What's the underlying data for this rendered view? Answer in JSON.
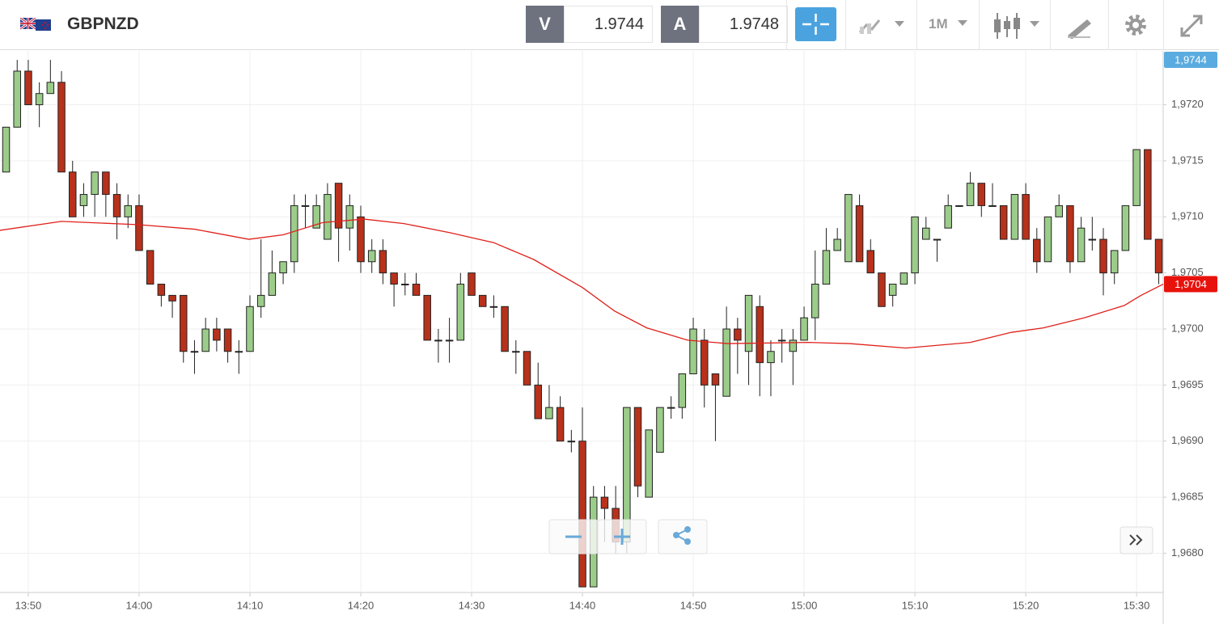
{
  "header": {
    "symbol": "GBPNZD",
    "bid_label": "V",
    "bid": "1.9744",
    "ask_label": "A",
    "ask": "1.9748",
    "interval": "1M"
  },
  "chart_data": {
    "type": "candlestick",
    "x": [
      828,
      829,
      830,
      831,
      832,
      833,
      834,
      835,
      836,
      837,
      838,
      839,
      840,
      841,
      842,
      843,
      844,
      845,
      846,
      847,
      848,
      849,
      850,
      851,
      852,
      853,
      854,
      855,
      856,
      857,
      858,
      859,
      860,
      861,
      862,
      863,
      864,
      865,
      866,
      867,
      868,
      869,
      870,
      871,
      872,
      873,
      874,
      875,
      876,
      877,
      878,
      879,
      880,
      881,
      882,
      883,
      884,
      885,
      886,
      887,
      888,
      889,
      890,
      891,
      892,
      893,
      894,
      895,
      896,
      897,
      898,
      899,
      900,
      901,
      902,
      903,
      904,
      905,
      906,
      907,
      908,
      909,
      910,
      911,
      912,
      913,
      914,
      915,
      916,
      917,
      918,
      919,
      920,
      921,
      922,
      923,
      924,
      925,
      926,
      927,
      928,
      929,
      930,
      931,
      932
    ],
    "open": [
      1.9714,
      1.9718,
      1.9723,
      1.972,
      1.9721,
      1.9722,
      1.9714,
      1.9711,
      1.9712,
      1.9714,
      1.9712,
      1.971,
      1.9711,
      1.9707,
      1.9704,
      1.9703,
      1.9703,
      1.9698,
      1.9698,
      1.97,
      1.97,
      1.9698,
      1.9698,
      1.9702,
      1.9703,
      1.9705,
      1.9706,
      1.9711,
      1.9709,
      1.9708,
      1.9713,
      1.9709,
      1.971,
      1.9706,
      1.9707,
      1.9705,
      1.9704,
      1.9704,
      1.9703,
      1.9699,
      1.9699,
      1.9699,
      1.9705,
      1.9703,
      1.9702,
      1.9702,
      1.9698,
      1.9698,
      1.9695,
      1.9692,
      1.9693,
      1.969,
      1.969,
      1.9677,
      1.9685,
      1.9684,
      1.9681,
      1.9693,
      1.9685,
      1.9689,
      1.9693,
      1.9693,
      1.9696,
      1.9699,
      1.9696,
      1.9694,
      1.97,
      1.9698,
      1.9702,
      1.9697,
      1.9699,
      1.9698,
      1.9699,
      1.9701,
      1.9704,
      1.9707,
      1.9706,
      1.9711,
      1.9707,
      1.9705,
      1.9703,
      1.9704,
      1.9705,
      1.9708,
      1.9708,
      1.9709,
      1.9711,
      1.9711,
      1.9713,
      1.9711,
      1.9711,
      1.9708,
      1.9712,
      1.9708,
      1.9706,
      1.971,
      1.9711,
      1.9706,
      1.9708,
      1.9708,
      1.9705,
      1.9707,
      1.9711,
      1.9716,
      1.9708
    ],
    "high": [
      1.9718,
      1.9724,
      1.9724,
      1.9722,
      1.9724,
      1.9723,
      1.9715,
      1.9713,
      1.9714,
      1.9714,
      1.9713,
      1.9712,
      1.9712,
      1.9707,
      1.9704,
      1.9703,
      1.9703,
      1.9699,
      1.9701,
      1.9701,
      1.97,
      1.9699,
      1.9703,
      1.9708,
      1.9707,
      1.9706,
      1.9712,
      1.9712,
      1.9712,
      1.9713,
      1.9713,
      1.9712,
      1.9711,
      1.9708,
      1.9708,
      1.9705,
      1.9705,
      1.9705,
      1.9703,
      1.97,
      1.9701,
      1.9705,
      1.9705,
      1.9703,
      1.9703,
      1.9702,
      1.9699,
      1.9698,
      1.9697,
      1.9695,
      1.9694,
      1.9691,
      1.9693,
      1.9686,
      1.9686,
      1.9686,
      1.9693,
      1.9693,
      1.9691,
      1.9693,
      1.9694,
      1.9696,
      1.9701,
      1.97,
      1.9696,
      1.9702,
      1.9701,
      1.9703,
      1.9703,
      1.9699,
      1.97,
      1.97,
      1.9702,
      1.9707,
      1.9709,
      1.9709,
      1.9712,
      1.9712,
      1.9708,
      1.9705,
      1.9704,
      1.9705,
      1.971,
      1.971,
      1.9708,
      1.9712,
      1.9711,
      1.9714,
      1.9713,
      1.9713,
      1.9711,
      1.9712,
      1.9713,
      1.9709,
      1.971,
      1.9712,
      1.9711,
      1.971,
      1.971,
      1.9709,
      1.9707,
      1.9711,
      1.9716,
      1.9716,
      1.9708
    ],
    "low": [
      1.9714,
      1.9718,
      1.972,
      1.9718,
      1.9721,
      1.9714,
      1.971,
      1.971,
      1.971,
      1.971,
      1.9708,
      1.9709,
      1.9707,
      1.9704,
      1.9702,
      1.9701,
      1.9697,
      1.9696,
      1.9698,
      1.9698,
      1.9697,
      1.9696,
      1.9698,
      1.9701,
      1.9703,
      1.9704,
      1.9705,
      1.9709,
      1.9709,
      1.9708,
      1.9706,
      1.9707,
      1.9705,
      1.9705,
      1.9704,
      1.9702,
      1.9703,
      1.9703,
      1.9699,
      1.9697,
      1.9697,
      1.9699,
      1.9703,
      1.9702,
      1.9701,
      1.9698,
      1.9696,
      1.9695,
      1.9692,
      1.9692,
      1.969,
      1.9689,
      1.9677,
      1.9677,
      1.9681,
      1.968,
      1.968,
      1.9685,
      1.9685,
      1.9689,
      1.9692,
      1.9692,
      1.9696,
      1.9693,
      1.969,
      1.9694,
      1.9696,
      1.9695,
      1.9694,
      1.9694,
      1.9697,
      1.9695,
      1.9699,
      1.9699,
      1.9704,
      1.9707,
      1.9706,
      1.9706,
      1.9705,
      1.9702,
      1.9702,
      1.9704,
      1.9704,
      1.9708,
      1.9706,
      1.9709,
      1.9711,
      1.9711,
      1.971,
      1.9711,
      1.9708,
      1.9708,
      1.9708,
      1.9705,
      1.9706,
      1.971,
      1.9705,
      1.9706,
      1.9707,
      1.9703,
      1.9704,
      1.9707,
      1.9711,
      1.9708,
      1.9704
    ],
    "close": [
      1.9718,
      1.9723,
      1.972,
      1.9721,
      1.9722,
      1.9714,
      1.971,
      1.9712,
      1.9714,
      1.9712,
      1.971,
      1.9711,
      1.9707,
      1.9704,
      1.9703,
      1.97025,
      1.9698,
      1.9698,
      1.97,
      1.9699,
      1.9698,
      1.9698,
      1.9702,
      1.9703,
      1.9705,
      1.9706,
      1.9711,
      1.9711,
      1.9711,
      1.9712,
      1.9709,
      1.9711,
      1.9706,
      1.9707,
      1.9705,
      1.9704,
      1.9704,
      1.9703,
      1.9699,
      1.9699,
      1.9699,
      1.9704,
      1.9703,
      1.9702,
      1.9702,
      1.9698,
      1.9698,
      1.9695,
      1.9692,
      1.9693,
      1.969,
      1.969,
      1.9677,
      1.9685,
      1.9684,
      1.9681,
      1.9693,
      1.9686,
      1.9691,
      1.9693,
      1.9693,
      1.9696,
      1.97,
      1.9695,
      1.9695,
      1.97,
      1.9699,
      1.9703,
      1.9697,
      1.9698,
      1.9699,
      1.9699,
      1.9701,
      1.9704,
      1.9707,
      1.9708,
      1.9712,
      1.9706,
      1.9705,
      1.9702,
      1.9704,
      1.9705,
      1.971,
      1.9709,
      1.9708,
      1.9711,
      1.9711,
      1.9713,
      1.9711,
      1.9711,
      1.9708,
      1.9712,
      1.9708,
      1.9706,
      1.971,
      1.9711,
      1.9706,
      1.9709,
      1.9708,
      1.9705,
      1.9707,
      1.9711,
      1.9716,
      1.9708,
      1.9705
    ],
    "up_color": "#9ccc8a",
    "down_color": "#b8311b",
    "moving_average": {
      "color": "#e0201a",
      "x": [
        827.45,
        833.0,
        840.0,
        845.0,
        849.9,
        853.0,
        856.6,
        860.3,
        863.9,
        868.0,
        872.0,
        875.6,
        880.0,
        882.9,
        885.8,
        889.5,
        893.1,
        900.4,
        904.1,
        909.2,
        915.0,
        918.7,
        921.6,
        925.3,
        928.9,
        930.4,
        932.4
      ],
      "values": [
        1.97088,
        1.97096,
        1.97093,
        1.97089,
        1.9708,
        1.97084,
        1.97095,
        1.97098,
        1.97094,
        1.97086,
        1.97077,
        1.97062,
        1.97037,
        1.97016,
        1.97001,
        1.9699,
        1.96987,
        1.96988,
        1.96987,
        1.96983,
        1.96988,
        1.96997,
        1.97001,
        1.9701,
        1.97021,
        1.9703,
        1.9704
      ]
    },
    "price_tags": [
      {
        "value": 1.9744,
        "label": "1,9744",
        "color": "#5aabdf"
      },
      {
        "value": 1.9704,
        "label": "1,9704",
        "color": "#e8120c"
      }
    ],
    "xlim": [
      827.45,
      932.4
    ],
    "xticks": [
      {
        "value": 830,
        "label": "13:50"
      },
      {
        "value": 840,
        "label": "14:00"
      },
      {
        "value": 850,
        "label": "14:10"
      },
      {
        "value": 860,
        "label": "14:20"
      },
      {
        "value": 870,
        "label": "14:30"
      },
      {
        "value": 880,
        "label": "14:40"
      },
      {
        "value": 890,
        "label": "14:50"
      },
      {
        "value": 900,
        "label": "15:00"
      },
      {
        "value": 910,
        "label": "15:10"
      },
      {
        "value": 920,
        "label": "15:20"
      },
      {
        "value": 930,
        "label": "15:30"
      }
    ],
    "ylim": [
      1.96765,
      1.97248
    ],
    "yticks": [
      {
        "value": 1.968,
        "label": "1,9680"
      },
      {
        "value": 1.9685,
        "label": "1,9685"
      },
      {
        "value": 1.969,
        "label": "1,9690"
      },
      {
        "value": 1.9695,
        "label": "1,9695"
      },
      {
        "value": 1.97,
        "label": "1,9700"
      },
      {
        "value": 1.9705,
        "label": "1,9705"
      },
      {
        "value": 1.971,
        "label": "1,9710"
      },
      {
        "value": 1.9715,
        "label": "1,9715"
      },
      {
        "value": 1.972,
        "label": "1,9720"
      }
    ],
    "grid": true
  }
}
